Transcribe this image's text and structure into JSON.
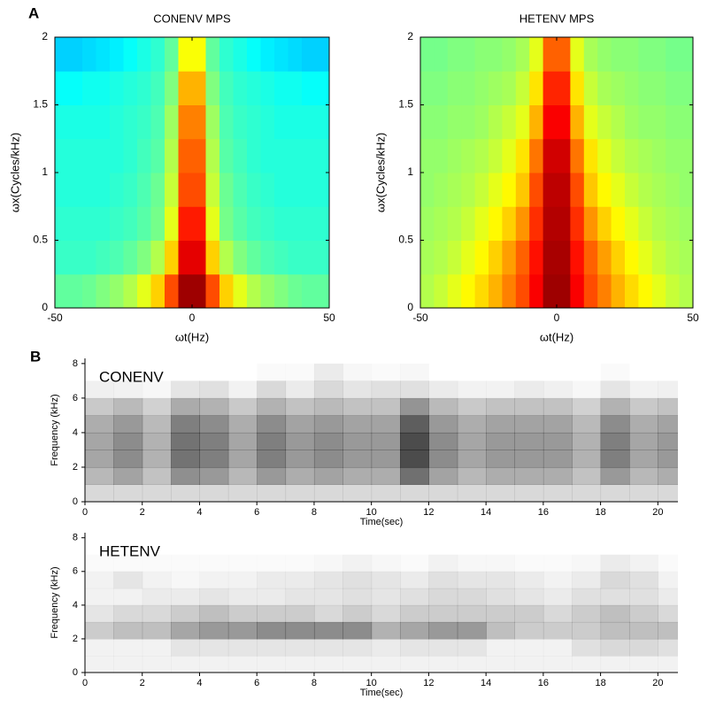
{
  "panel_labels": [
    "A",
    "B"
  ],
  "chart_data": [
    {
      "type": "heatmap",
      "title": "CONENV MPS",
      "x_label": "ωt(Hz)",
      "y_label": "ωx(Cycles/kHz)",
      "colormap": "jet",
      "xlim": [
        -50,
        50
      ],
      "ylim": [
        0,
        2
      ],
      "xticks": [
        -50,
        0,
        50
      ],
      "yticks": [
        0,
        0.5,
        1,
        1.5,
        2
      ],
      "xbins": [
        -50,
        -45,
        -40,
        -35,
        -30,
        -25,
        -20,
        -15,
        -10,
        -5,
        0,
        5,
        10,
        15,
        20,
        25,
        30,
        35,
        40,
        45,
        50
      ],
      "ybins": [
        0,
        0.25,
        0.5,
        0.75,
        1,
        1.25,
        1.5,
        1.75,
        2
      ],
      "z": [
        [
          0.47,
          0.47,
          0.48,
          0.5,
          0.52,
          0.55,
          0.6,
          0.67,
          0.8,
          0.97,
          0.97,
          0.8,
          0.67,
          0.6,
          0.55,
          0.52,
          0.5,
          0.48,
          0.47,
          0.47
        ],
        [
          0.43,
          0.43,
          0.43,
          0.44,
          0.45,
          0.47,
          0.5,
          0.55,
          0.67,
          0.9,
          0.9,
          0.67,
          0.55,
          0.5,
          0.47,
          0.45,
          0.44,
          0.43,
          0.43,
          0.43
        ],
        [
          0.42,
          0.42,
          0.42,
          0.42,
          0.43,
          0.44,
          0.46,
          0.49,
          0.6,
          0.85,
          0.85,
          0.6,
          0.49,
          0.46,
          0.44,
          0.43,
          0.42,
          0.42,
          0.42,
          0.42
        ],
        [
          0.41,
          0.41,
          0.41,
          0.41,
          0.42,
          0.43,
          0.45,
          0.48,
          0.57,
          0.8,
          0.8,
          0.57,
          0.48,
          0.45,
          0.43,
          0.42,
          0.41,
          0.41,
          0.41,
          0.41
        ],
        [
          0.41,
          0.41,
          0.41,
          0.41,
          0.41,
          0.42,
          0.44,
          0.46,
          0.55,
          0.78,
          0.78,
          0.55,
          0.46,
          0.44,
          0.42,
          0.41,
          0.41,
          0.41,
          0.41,
          0.41
        ],
        [
          0.4,
          0.4,
          0.4,
          0.4,
          0.41,
          0.42,
          0.43,
          0.45,
          0.53,
          0.75,
          0.75,
          0.53,
          0.45,
          0.43,
          0.42,
          0.41,
          0.4,
          0.4,
          0.4,
          0.4
        ],
        [
          0.38,
          0.38,
          0.39,
          0.39,
          0.4,
          0.41,
          0.42,
          0.44,
          0.5,
          0.7,
          0.7,
          0.5,
          0.44,
          0.42,
          0.41,
          0.4,
          0.39,
          0.39,
          0.38,
          0.38
        ],
        [
          0.33,
          0.33,
          0.34,
          0.35,
          0.36,
          0.38,
          0.4,
          0.42,
          0.47,
          0.62,
          0.62,
          0.47,
          0.42,
          0.4,
          0.38,
          0.36,
          0.35,
          0.34,
          0.33,
          0.33
        ]
      ]
    },
    {
      "type": "heatmap",
      "title": "HETENV MPS",
      "x_label": "ωt(Hz)",
      "y_label": "ωx(Cycles/kHz)",
      "colormap": "jet",
      "xlim": [
        -50,
        50
      ],
      "ylim": [
        0,
        2
      ],
      "xticks": [
        -50,
        0,
        50
      ],
      "yticks": [
        0,
        0.5,
        1,
        1.5,
        2
      ],
      "xbins": [
        -50,
        -45,
        -40,
        -35,
        -30,
        -25,
        -20,
        -15,
        -10,
        -5,
        0,
        5,
        10,
        15,
        20,
        25,
        30,
        35,
        40,
        45,
        50
      ],
      "ybins": [
        0,
        0.25,
        0.5,
        0.75,
        1,
        1.25,
        1.5,
        1.75,
        2
      ],
      "z": [
        [
          0.55,
          0.57,
          0.6,
          0.63,
          0.66,
          0.7,
          0.75,
          0.8,
          0.88,
          0.97,
          0.97,
          0.88,
          0.8,
          0.75,
          0.7,
          0.66,
          0.63,
          0.6,
          0.57,
          0.55
        ],
        [
          0.54,
          0.55,
          0.57,
          0.6,
          0.63,
          0.67,
          0.72,
          0.78,
          0.86,
          0.96,
          0.96,
          0.86,
          0.78,
          0.72,
          0.67,
          0.63,
          0.6,
          0.57,
          0.55,
          0.54
        ],
        [
          0.53,
          0.54,
          0.55,
          0.57,
          0.6,
          0.63,
          0.67,
          0.73,
          0.83,
          0.95,
          0.95,
          0.83,
          0.73,
          0.67,
          0.63,
          0.6,
          0.57,
          0.55,
          0.54,
          0.53
        ],
        [
          0.52,
          0.53,
          0.54,
          0.55,
          0.57,
          0.6,
          0.63,
          0.68,
          0.8,
          0.94,
          0.94,
          0.8,
          0.68,
          0.63,
          0.6,
          0.57,
          0.55,
          0.54,
          0.53,
          0.52
        ],
        [
          0.52,
          0.52,
          0.53,
          0.54,
          0.55,
          0.57,
          0.6,
          0.65,
          0.76,
          0.92,
          0.92,
          0.76,
          0.65,
          0.6,
          0.57,
          0.55,
          0.54,
          0.53,
          0.52,
          0.52
        ],
        [
          0.51,
          0.51,
          0.52,
          0.52,
          0.53,
          0.55,
          0.57,
          0.6,
          0.7,
          0.88,
          0.88,
          0.7,
          0.6,
          0.57,
          0.55,
          0.53,
          0.52,
          0.52,
          0.51,
          0.51
        ],
        [
          0.5,
          0.5,
          0.51,
          0.51,
          0.52,
          0.53,
          0.54,
          0.57,
          0.65,
          0.84,
          0.84,
          0.65,
          0.57,
          0.54,
          0.53,
          0.52,
          0.51,
          0.51,
          0.5,
          0.5
        ],
        [
          0.49,
          0.49,
          0.5,
          0.5,
          0.51,
          0.51,
          0.52,
          0.54,
          0.6,
          0.78,
          0.78,
          0.6,
          0.54,
          0.52,
          0.51,
          0.51,
          0.5,
          0.5,
          0.49,
          0.49
        ]
      ]
    },
    {
      "type": "spectrogram",
      "label": "CONENV",
      "x_label": "Time(sec)",
      "y_label": "Frequency (kHz)",
      "color": "#000000",
      "xlim": [
        0,
        20.7
      ],
      "ylim": [
        0,
        8.3
      ],
      "xticks": [
        0,
        2,
        4,
        6,
        8,
        10,
        12,
        14,
        16,
        18,
        20
      ],
      "yticks": [
        0,
        2,
        4,
        6,
        8
      ],
      "xbins": [
        0,
        1,
        2,
        3,
        4,
        5,
        6,
        7,
        8,
        9,
        10,
        11,
        12,
        13,
        14,
        15,
        16,
        17,
        18,
        19,
        20,
        21
      ],
      "ybins": [
        0,
        1,
        2,
        3,
        4,
        5,
        6,
        7,
        8
      ],
      "z": [
        [
          0.15,
          0.15,
          0.15,
          0.15,
          0.15,
          0.15,
          0.15,
          0.15,
          0.15,
          0.15,
          0.15,
          0.15,
          0.15,
          0.15,
          0.15,
          0.15,
          0.15,
          0.15,
          0.15,
          0.15,
          0.15
        ],
        [
          0.28,
          0.36,
          0.24,
          0.44,
          0.4,
          0.28,
          0.4,
          0.32,
          0.36,
          0.32,
          0.32,
          0.56,
          0.36,
          0.28,
          0.32,
          0.32,
          0.32,
          0.24,
          0.4,
          0.28,
          0.32
        ],
        [
          0.35,
          0.45,
          0.3,
          0.55,
          0.5,
          0.35,
          0.5,
          0.4,
          0.45,
          0.4,
          0.4,
          0.7,
          0.45,
          0.35,
          0.4,
          0.4,
          0.4,
          0.3,
          0.5,
          0.35,
          0.4
        ],
        [
          0.35,
          0.45,
          0.3,
          0.55,
          0.5,
          0.35,
          0.5,
          0.4,
          0.45,
          0.4,
          0.4,
          0.7,
          0.45,
          0.35,
          0.4,
          0.4,
          0.4,
          0.3,
          0.5,
          0.35,
          0.4
        ],
        [
          0.32,
          0.4,
          0.27,
          0.5,
          0.45,
          0.32,
          0.45,
          0.36,
          0.4,
          0.36,
          0.36,
          0.63,
          0.4,
          0.32,
          0.36,
          0.36,
          0.36,
          0.27,
          0.45,
          0.32,
          0.36
        ],
        [
          0.21,
          0.27,
          0.18,
          0.33,
          0.3,
          0.21,
          0.3,
          0.24,
          0.27,
          0.24,
          0.24,
          0.42,
          0.27,
          0.21,
          0.24,
          0.24,
          0.24,
          0.18,
          0.3,
          0.21,
          0.24
        ],
        [
          0.06,
          0.05,
          0.03,
          0.1,
          0.12,
          0.05,
          0.15,
          0.08,
          0.15,
          0.1,
          0.12,
          0.12,
          0.08,
          0.05,
          0.05,
          0.08,
          0.06,
          0.03,
          0.1,
          0.05,
          0.06
        ],
        [
          0,
          0,
          0,
          0,
          0,
          0,
          0.02,
          0.02,
          0.08,
          0.03,
          0.02,
          0.03,
          0,
          0,
          0,
          0,
          0,
          0,
          0.02,
          0,
          0
        ]
      ]
    },
    {
      "type": "spectrogram",
      "label": "HETENV",
      "x_label": "Time(sec)",
      "y_label": "Frequency (kHz)",
      "color": "#000000",
      "xlim": [
        0,
        20.7
      ],
      "ylim": [
        0,
        8.3
      ],
      "xticks": [
        0,
        2,
        4,
        6,
        8,
        10,
        12,
        14,
        16,
        18,
        20
      ],
      "yticks": [
        0,
        2,
        4,
        6,
        8
      ],
      "xbins": [
        0,
        1,
        2,
        3,
        4,
        5,
        6,
        7,
        8,
        9,
        10,
        11,
        12,
        13,
        14,
        15,
        16,
        17,
        18,
        19,
        20,
        21
      ],
      "ybins": [
        0,
        1,
        2,
        3,
        4,
        5,
        6,
        7,
        8
      ],
      "z": [
        [
          0.05,
          0.05,
          0.05,
          0.05,
          0.05,
          0.05,
          0.05,
          0.05,
          0.05,
          0.05,
          0.05,
          0.05,
          0.05,
          0.05,
          0.05,
          0.05,
          0.05,
          0.05,
          0.05,
          0.05,
          0.05
        ],
        [
          0.05,
          0.05,
          0.05,
          0.1,
          0.1,
          0.1,
          0.1,
          0.1,
          0.1,
          0.1,
          0.08,
          0.1,
          0.1,
          0.1,
          0.05,
          0.05,
          0.05,
          0.12,
          0.15,
          0.15,
          0.12
        ],
        [
          0.2,
          0.25,
          0.25,
          0.35,
          0.4,
          0.4,
          0.45,
          0.45,
          0.45,
          0.45,
          0.3,
          0.35,
          0.4,
          0.4,
          0.25,
          0.2,
          0.2,
          0.2,
          0.25,
          0.25,
          0.25
        ],
        [
          0.1,
          0.15,
          0.15,
          0.2,
          0.25,
          0.2,
          0.2,
          0.2,
          0.15,
          0.2,
          0.15,
          0.2,
          0.2,
          0.2,
          0.2,
          0.2,
          0.15,
          0.2,
          0.25,
          0.2,
          0.15
        ],
        [
          0.05,
          0.05,
          0.08,
          0.08,
          0.1,
          0.08,
          0.08,
          0.1,
          0.1,
          0.12,
          0.1,
          0.12,
          0.15,
          0.15,
          0.12,
          0.1,
          0.08,
          0.12,
          0.12,
          0.12,
          0.08
        ],
        [
          0.05,
          0.1,
          0.05,
          0.03,
          0.05,
          0.05,
          0.08,
          0.08,
          0.1,
          0.12,
          0.1,
          0.08,
          0.12,
          0.1,
          0.1,
          0.08,
          0.05,
          0.08,
          0.15,
          0.12,
          0.05
        ],
        [
          0.02,
          0.02,
          0.02,
          0.02,
          0.02,
          0.02,
          0.02,
          0.02,
          0.03,
          0.05,
          0.03,
          0.02,
          0.05,
          0.03,
          0.03,
          0.02,
          0.02,
          0.03,
          0.08,
          0.05,
          0.02
        ],
        [
          0,
          0,
          0,
          0,
          0,
          0,
          0,
          0,
          0,
          0,
          0,
          0,
          0,
          0,
          0,
          0,
          0,
          0,
          0,
          0,
          0
        ]
      ]
    }
  ]
}
